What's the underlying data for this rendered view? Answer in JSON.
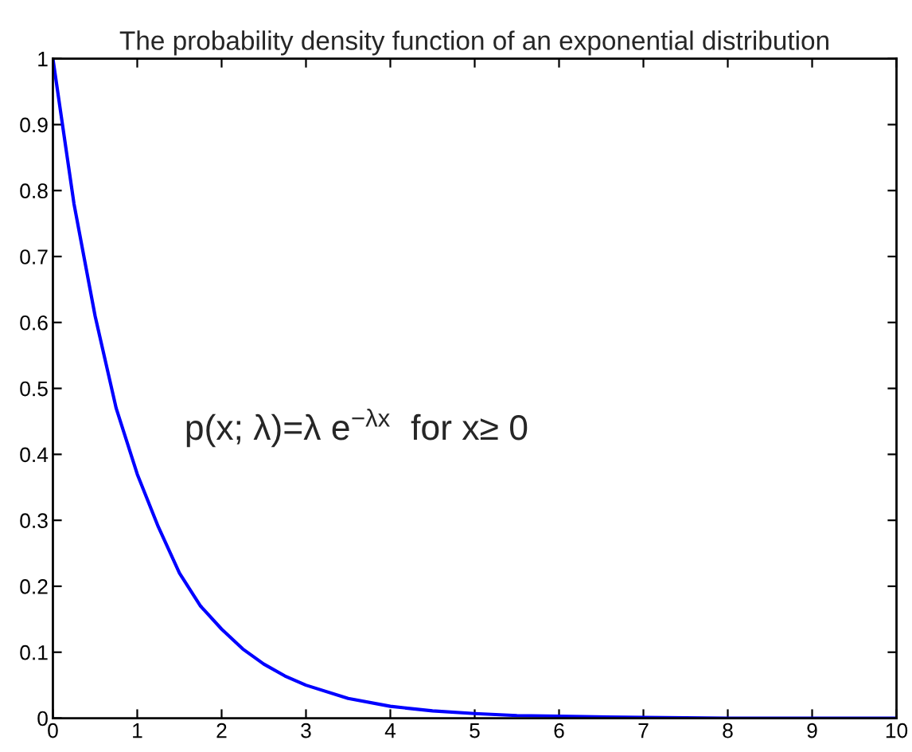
{
  "chart_data": {
    "type": "line",
    "title": "The probability density function of an exponential distribution",
    "x": [
      0,
      0.25,
      0.5,
      0.75,
      1,
      1.25,
      1.5,
      1.75,
      2,
      2.25,
      2.5,
      2.75,
      3,
      3.5,
      4,
      4.5,
      5,
      5.5,
      6,
      7,
      8,
      9,
      10
    ],
    "series": [
      {
        "color": "#0000ff",
        "values": [
          1,
          0.78,
          0.61,
          0.47,
          0.37,
          0.29,
          0.22,
          0.17,
          0.135,
          0.105,
          0.082,
          0.064,
          0.05,
          0.03,
          0.018,
          0.011,
          0.007,
          0.004,
          0.003,
          0.001,
          0,
          0,
          0
        ]
      }
    ],
    "xlim": [
      0,
      10
    ],
    "ylim": [
      0,
      1
    ],
    "xticks": [
      0,
      1,
      2,
      3,
      4,
      5,
      6,
      7,
      8,
      9,
      10
    ],
    "yticks": [
      0,
      0.1,
      0.2,
      0.3,
      0.4,
      0.5,
      0.6,
      0.7,
      0.8,
      0.9,
      1
    ],
    "line_style": "solid",
    "annotations": [
      "p(x; λ)=λ e$^{−λx}$  for x≥ 0"
    ]
  }
}
